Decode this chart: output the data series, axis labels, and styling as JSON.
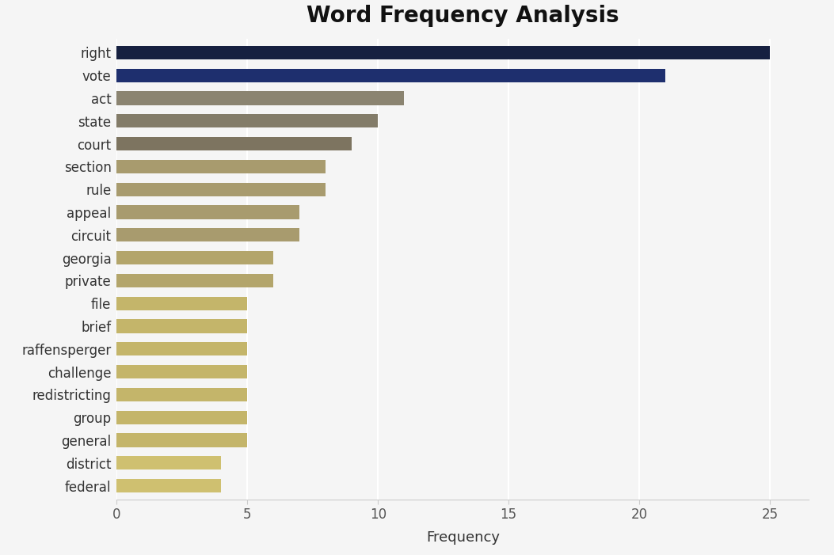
{
  "title": "Word Frequency Analysis",
  "xlabel": "Frequency",
  "categories": [
    "right",
    "vote",
    "act",
    "state",
    "court",
    "section",
    "rule",
    "appeal",
    "circuit",
    "georgia",
    "private",
    "file",
    "brief",
    "raffensperger",
    "challenge",
    "redistricting",
    "group",
    "general",
    "district",
    "federal"
  ],
  "values": [
    25,
    21,
    11,
    10,
    9,
    8,
    8,
    7,
    7,
    6,
    6,
    5,
    5,
    5,
    5,
    5,
    5,
    5,
    4,
    4
  ],
  "bar_colors": [
    "#162040",
    "#1e2f6e",
    "#8b8471",
    "#837c69",
    "#7d7460",
    "#a89b6e",
    "#a89b6e",
    "#a89b6e",
    "#a89b6e",
    "#b3a56b",
    "#b3a56b",
    "#c4b56a",
    "#c4b56a",
    "#c4b56a",
    "#c4b56a",
    "#c4b56a",
    "#c4b56a",
    "#c4b56a",
    "#cfc070",
    "#cfc070"
  ],
  "xlim": [
    0,
    26.5
  ],
  "xticks": [
    0,
    5,
    10,
    15,
    20,
    25
  ],
  "background_color": "#f5f5f5",
  "title_fontsize": 20,
  "label_fontsize": 13,
  "tick_fontsize": 12,
  "bar_height": 0.6
}
